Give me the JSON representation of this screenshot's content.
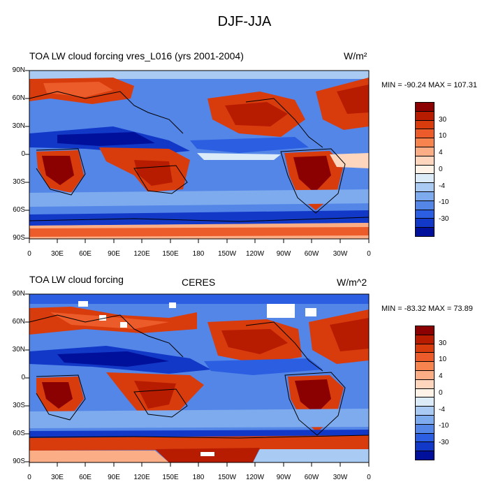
{
  "title": "DJF-JJA",
  "lat_ticks": [
    "90N",
    "60N",
    "30N",
    "0",
    "30S",
    "60S",
    "90S"
  ],
  "lon_ticks": [
    "0",
    "30E",
    "60E",
    "90E",
    "120E",
    "150E",
    "180",
    "150W",
    "120W",
    "90W",
    "60W",
    "30W",
    "0"
  ],
  "colorbar_labels": [
    "30",
    "10",
    "4",
    "0",
    "-4",
    "-10",
    "-30"
  ],
  "colorbar_colors": [
    "#8b0000",
    "#b71c00",
    "#d83b0c",
    "#ec5b2a",
    "#f7844f",
    "#fbad86",
    "#fdd6bd",
    "#fff3e8",
    "#dcebf8",
    "#a9caf2",
    "#7eabee",
    "#5486e8",
    "#2b5ee0",
    "#1238c8",
    "#00109a"
  ],
  "panels": [
    {
      "left_title": "TOA LW cloud forcing vres_L016 (yrs 2001-2004)",
      "center_title": "",
      "units": "W/m²",
      "minmax": "MIN = -90.24 MAX = 107.31"
    },
    {
      "left_title": "TOA LW cloud forcing",
      "center_title": "CERES",
      "units": "W/m^2",
      "minmax": "MIN = -83.32 MAX =  73.89"
    }
  ]
}
